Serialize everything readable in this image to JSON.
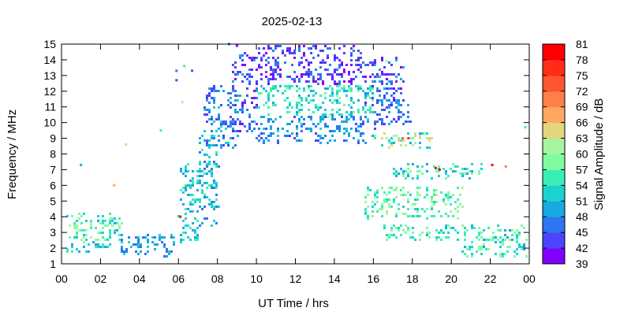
{
  "chart_data": {
    "type": "scatter",
    "title": "2025-02-13",
    "xlabel": "UT Time / hrs",
    "ylabel": "Frequency / MHz",
    "xlim": [
      0,
      24
    ],
    "ylim": [
      1,
      15
    ],
    "x_ticks": [
      "00",
      "02",
      "04",
      "06",
      "08",
      "10",
      "12",
      "14",
      "16",
      "18",
      "20",
      "22",
      "00"
    ],
    "y_ticks": [
      "1",
      "2",
      "3",
      "4",
      "5",
      "6",
      "7",
      "8",
      "9",
      "10",
      "11",
      "12",
      "13",
      "14",
      "15"
    ],
    "colorbar": {
      "label": "Signal Amplitude / dB",
      "min": 39,
      "max": 81,
      "ticks": [
        "39",
        "42",
        "45",
        "48",
        "51",
        "54",
        "57",
        "60",
        "63",
        "66",
        "69",
        "72",
        "75",
        "78",
        "81"
      ],
      "colors": [
        "#8000ff",
        "#4b44fb",
        "#2d77f1",
        "#18a9e3",
        "#1ad2cf",
        "#3beeb8",
        "#80fca0",
        "#a8f5a0",
        "#e1d77d",
        "#ffa760",
        "#ff7f4a",
        "#ff5530",
        "#ff2d17",
        "#ff0000"
      ]
    },
    "grid": false,
    "legend": "none",
    "density": {
      "note_units": "x in hours UT, y in MHz, amp in dB",
      "regions": [
        {
          "x": [
            0.0,
            3.0
          ],
          "y": [
            2.5,
            4.3
          ],
          "amp": [
            50,
            62
          ]
        },
        {
          "x": [
            0.2,
            2.5
          ],
          "y": [
            1.8,
            2.5
          ],
          "amp": [
            48,
            56
          ]
        },
        {
          "x": [
            3.0,
            5.8
          ],
          "y": [
            1.6,
            3.0
          ],
          "amp": [
            45,
            54
          ]
        },
        {
          "x": [
            6.0,
            7.0
          ],
          "y": [
            2.5,
            7.5
          ],
          "amp": [
            48,
            56
          ]
        },
        {
          "x": [
            7.0,
            8.0
          ],
          "y": [
            3.5,
            9.5
          ],
          "amp": [
            46,
            56
          ]
        },
        {
          "x": [
            7.3,
            9.0
          ],
          "y": [
            8.5,
            12.5
          ],
          "amp": [
            42,
            52
          ]
        },
        {
          "x": [
            8.7,
            10.0
          ],
          "y": [
            9.5,
            14.5
          ],
          "amp": [
            40,
            50
          ]
        },
        {
          "x": [
            10.0,
            16.0
          ],
          "y": [
            8.8,
            10.5
          ],
          "amp": [
            44,
            52
          ]
        },
        {
          "x": [
            10.0,
            16.0
          ],
          "y": [
            10.5,
            12.5
          ],
          "amp": [
            50,
            58
          ]
        },
        {
          "x": [
            10.0,
            15.5
          ],
          "y": [
            12.5,
            15.0
          ],
          "amp": [
            39,
            48
          ]
        },
        {
          "x": [
            15.5,
            17.5
          ],
          "y": [
            11.0,
            14.2
          ],
          "amp": [
            40,
            50
          ]
        },
        {
          "x": [
            16.0,
            17.8
          ],
          "y": [
            10.0,
            11.5
          ],
          "amp": [
            42,
            50
          ]
        },
        {
          "x": [
            16.0,
            19.0
          ],
          "y": [
            8.5,
            9.5
          ],
          "amp": [
            50,
            66
          ]
        },
        {
          "x": [
            15.5,
            20.5
          ],
          "y": [
            4.0,
            6.0
          ],
          "amp": [
            52,
            62
          ]
        },
        {
          "x": [
            16.5,
            23.8
          ],
          "y": [
            2.5,
            3.5
          ],
          "amp": [
            50,
            60
          ]
        },
        {
          "x": [
            17.0,
            21.5
          ],
          "y": [
            6.5,
            7.5
          ],
          "amp": [
            48,
            60
          ]
        },
        {
          "x": [
            20.5,
            23.8
          ],
          "y": [
            1.5,
            2.5
          ],
          "amp": [
            50,
            60
          ]
        }
      ],
      "sparse_points": [
        {
          "x": 1.0,
          "y": 7.3,
          "amp": 48
        },
        {
          "x": 3.3,
          "y": 8.6,
          "amp": 65
        },
        {
          "x": 2.7,
          "y": 6.0,
          "amp": 66
        },
        {
          "x": 5.1,
          "y": 9.5,
          "amp": 54
        },
        {
          "x": 6.1,
          "y": 4.0,
          "amp": 81
        },
        {
          "x": 6.3,
          "y": 13.6,
          "amp": 54
        },
        {
          "x": 5.9,
          "y": 13.3,
          "amp": 45
        },
        {
          "x": 6.7,
          "y": 13.3,
          "amp": 42
        },
        {
          "x": 5.9,
          "y": 12.7,
          "amp": 42
        },
        {
          "x": 6.2,
          "y": 11.3,
          "amp": 60
        },
        {
          "x": 17.5,
          "y": 9.0,
          "amp": 72
        },
        {
          "x": 17.8,
          "y": 9.0,
          "amp": 75
        },
        {
          "x": 19.2,
          "y": 7.1,
          "amp": 81
        },
        {
          "x": 19.4,
          "y": 7.0,
          "amp": 78
        },
        {
          "x": 22.1,
          "y": 7.3,
          "amp": 81
        },
        {
          "x": 22.8,
          "y": 7.2,
          "amp": 69
        },
        {
          "x": 23.8,
          "y": 9.7,
          "amp": 54
        },
        {
          "x": 16.7,
          "y": 13.9,
          "amp": 60
        },
        {
          "x": 9.0,
          "y": 14.9,
          "amp": 39
        },
        {
          "x": 8.6,
          "y": 15.0,
          "amp": 42
        }
      ]
    }
  }
}
